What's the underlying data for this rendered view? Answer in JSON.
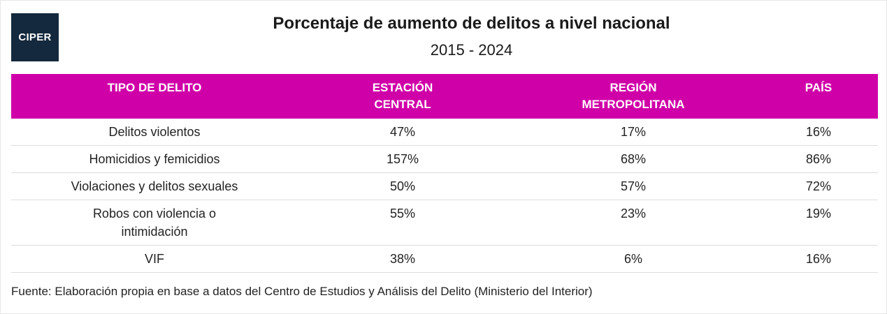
{
  "logo": {
    "text": "CIPER"
  },
  "chart_data": {
    "type": "table",
    "title": "Porcentaje de aumento de delitos a nivel nacional",
    "subtitle": "2015 - 2024",
    "columns": [
      "TIPO DE DELITO",
      "ESTACIÓN CENTRAL",
      "REGIÓN METROPOLITANA",
      "PAÍS"
    ],
    "rows": [
      {
        "tipo": "Delitos violentos",
        "estacion_central": "47%",
        "region_metropolitana": "17%",
        "pais": "16%"
      },
      {
        "tipo": "Homicidios y femicidios",
        "estacion_central": "157%",
        "region_metropolitana": "68%",
        "pais": "86%"
      },
      {
        "tipo": "Violaciones y delitos sexuales",
        "estacion_central": "50%",
        "region_metropolitana": "57%",
        "pais": "72%"
      },
      {
        "tipo": "Robos con violencia o intimidación",
        "estacion_central": "55%",
        "region_metropolitana": "23%",
        "pais": "19%"
      },
      {
        "tipo": "VIF",
        "estacion_central": "38%",
        "region_metropolitana": "6%",
        "pais": "16%"
      }
    ],
    "source": "Fuente: Elaboración propia en base a datos del Centro de Estudios y Análisis del Delito (Ministerio del Interior)",
    "header_color": "#d000a8"
  }
}
